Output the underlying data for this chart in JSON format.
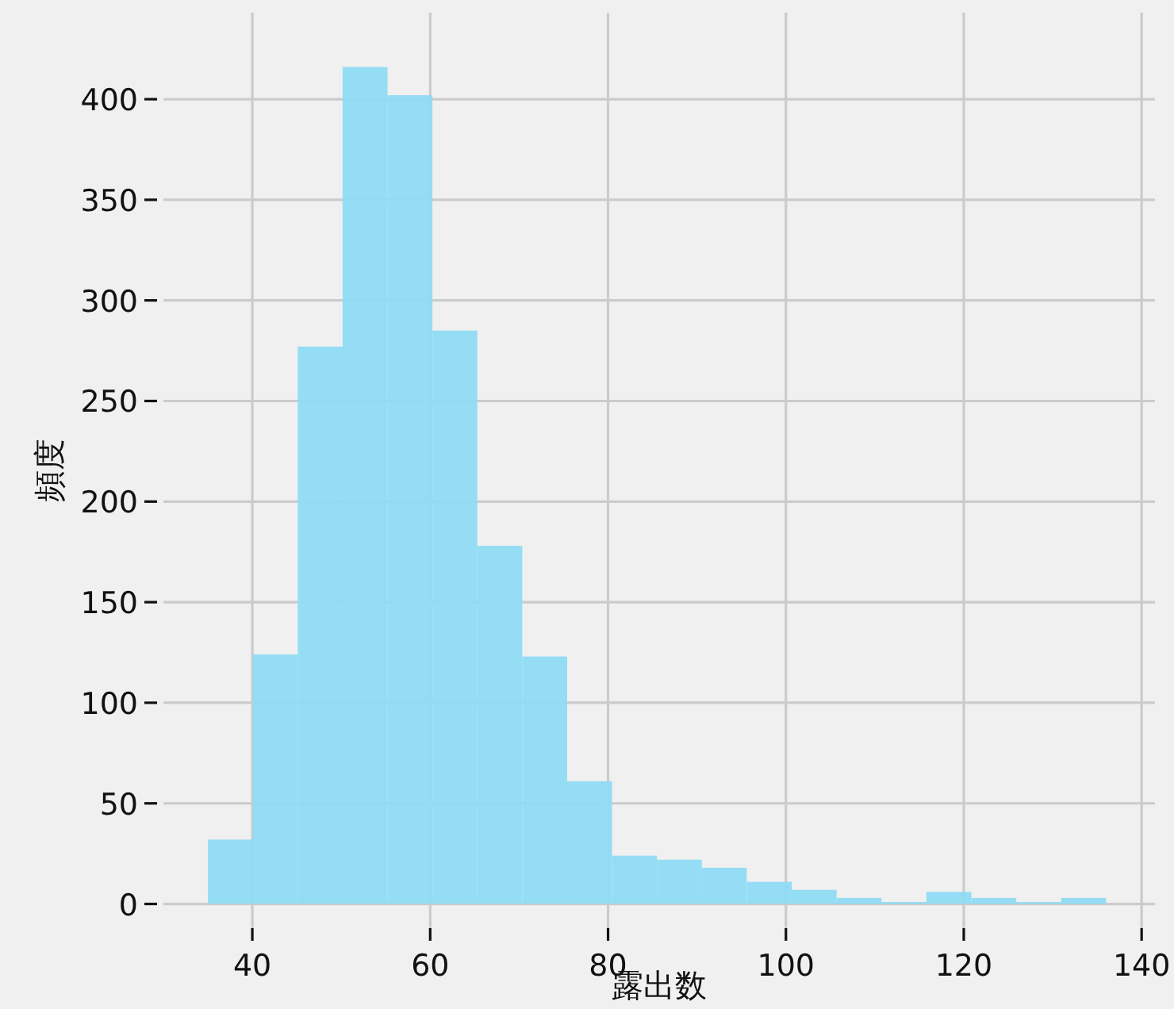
{
  "chart_data": {
    "type": "histogram",
    "xlabel": "露出数",
    "ylabel": "頻度",
    "bins": [
      35,
      40.05,
      45.1,
      50.15,
      55.2,
      60.25,
      65.3,
      70.35,
      75.4,
      80.45,
      85.5,
      90.55,
      95.6,
      100.65,
      105.7,
      110.75,
      115.8,
      120.85,
      125.9,
      130.95,
      136
    ],
    "values": [
      32,
      124,
      277,
      416,
      402,
      285,
      178,
      123,
      61,
      24,
      22,
      18,
      11,
      7,
      3,
      1,
      6,
      3,
      1,
      3
    ],
    "color": "#8fdbf3",
    "xlim": [
      30,
      141.5
    ],
    "ylim": [
      -12,
      443
    ],
    "xticks": [
      40,
      60,
      80,
      100,
      120,
      140
    ],
    "yticks": [
      0,
      50,
      100,
      150,
      200,
      250,
      300,
      350,
      400
    ],
    "grid": true
  }
}
